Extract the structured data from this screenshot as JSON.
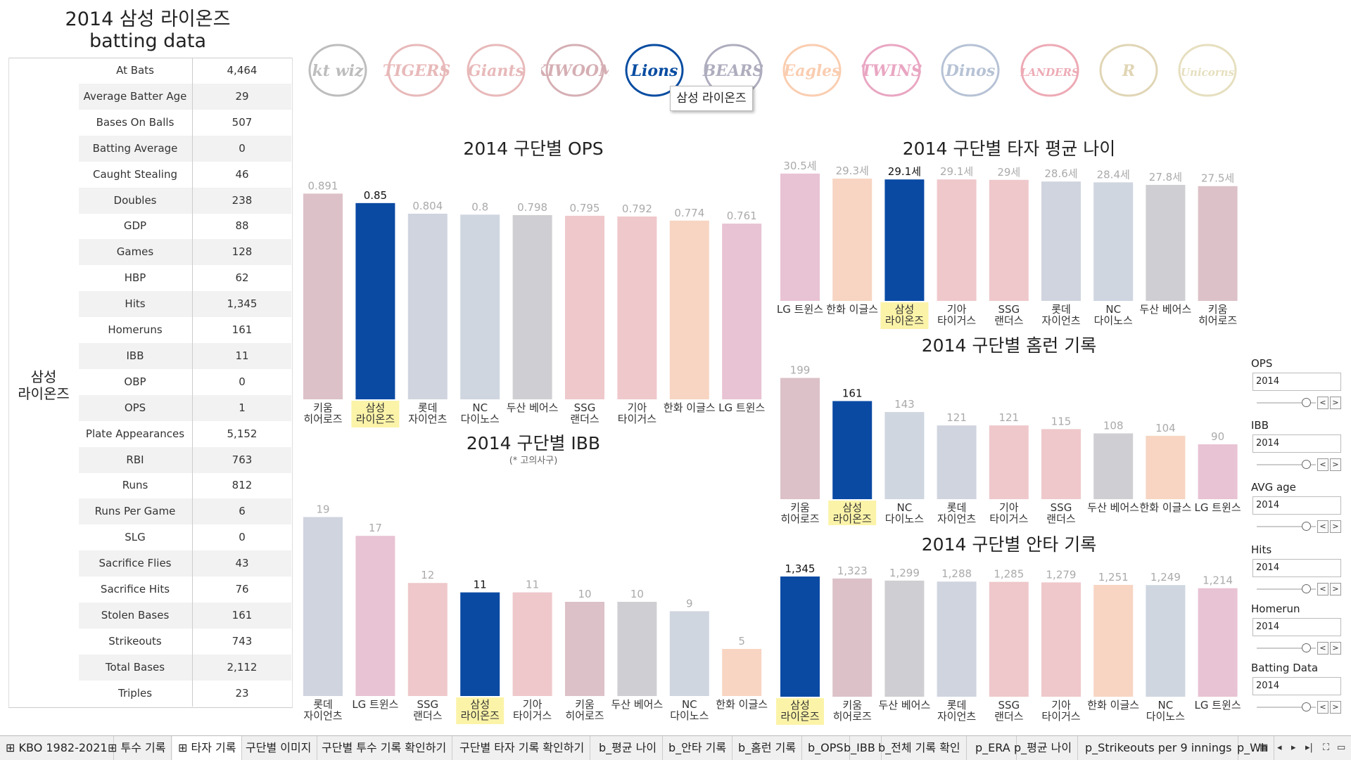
{
  "page_title": {
    "line1": "2014 삼성 라이온즈",
    "line2": "batting data"
  },
  "team": {
    "label_line1": "삼성",
    "label_line2": "라이온즈"
  },
  "stats": [
    {
      "name": "At Bats",
      "value": "4,464"
    },
    {
      "name": "Average Batter Age",
      "value": "29"
    },
    {
      "name": "Bases On Balls",
      "value": "507"
    },
    {
      "name": "Batting Average",
      "value": "0"
    },
    {
      "name": "Caught Stealing",
      "value": "46"
    },
    {
      "name": "Doubles",
      "value": "238"
    },
    {
      "name": "GDP",
      "value": "88"
    },
    {
      "name": "Games",
      "value": "128"
    },
    {
      "name": "HBP",
      "value": "62"
    },
    {
      "name": "Hits",
      "value": "1,345"
    },
    {
      "name": "Homeruns",
      "value": "161"
    },
    {
      "name": "IBB",
      "value": "11"
    },
    {
      "name": "OBP",
      "value": "0"
    },
    {
      "name": "OPS",
      "value": "1"
    },
    {
      "name": "Plate Appearances",
      "value": "5,152"
    },
    {
      "name": "RBI",
      "value": "763"
    },
    {
      "name": "Runs",
      "value": "812"
    },
    {
      "name": "Runs Per Game",
      "value": "6"
    },
    {
      "name": "SLG",
      "value": "0"
    },
    {
      "name": "Sacrifice Flies",
      "value": "43"
    },
    {
      "name": "Sacrifice Hits",
      "value": "76"
    },
    {
      "name": "Stolen Bases",
      "value": "161"
    },
    {
      "name": "Strikeouts",
      "value": "743"
    },
    {
      "name": "Total Bases",
      "value": "2,112"
    },
    {
      "name": "Triples",
      "value": "23"
    }
  ],
  "logos": [
    {
      "name": "kt-wiz-logo",
      "text": "kt wiz",
      "color": "#444444"
    },
    {
      "name": "tigers-logo",
      "text": "TIGERS",
      "color": "#c0393b"
    },
    {
      "name": "giants-logo",
      "text": "Giants",
      "color": "#c0393b"
    },
    {
      "name": "kiwoom-logo",
      "text": "KIWOOM",
      "color": "#8a1c2b"
    },
    {
      "name": "lions-logo",
      "text": "Lions",
      "color": "#074ca1"
    },
    {
      "name": "bears-logo",
      "text": "BEARS",
      "color": "#1a1748"
    },
    {
      "name": "eagles-logo",
      "text": "Eagles",
      "color": "#f37321"
    },
    {
      "name": "twins-logo",
      "text": "TWINS",
      "color": "#c30452"
    },
    {
      "name": "dinos-logo",
      "text": "Dinos",
      "color": "#315288"
    },
    {
      "name": "landers-logo",
      "text": "LANDERS",
      "color": "#ce0e2d"
    },
    {
      "name": "raiders-logo",
      "text": "R",
      "color": "#a88a2e"
    },
    {
      "name": "unicorns-logo",
      "text": "Unicorns",
      "color": "#b9a44a"
    }
  ],
  "tooltip": "삼성 라이온즈",
  "colors": {
    "highlight_bar": "#0a4aa3",
    "highlight_label_bg": "#fbf3a8",
    "faded_value": "#aaaaaa",
    "team_colors": {
      "키움 히어로즈": "#dcc1c8",
      "삼성 라이온즈": "#0a4aa3",
      "롯데 자이언츠": "#cfd4df",
      "NC 다이노스": "#cfd6e0",
      "두산 베어스": "#cfcfd3",
      "SSG 랜더스": "#efc8cb",
      "기아 타이거스": "#efc8cb",
      "한화 이글스": "#f7d5c2",
      "LG 트윈스": "#e8c3d3"
    }
  },
  "chart_data": [
    {
      "id": "ops",
      "type": "bar",
      "title": "2014 구단별 OPS",
      "categories": [
        "키움 히어로즈",
        "삼성 라이온즈",
        "롯데 자이언츠",
        "NC 다이노스",
        "두산 베어스",
        "SSG 랜더스",
        "기아 타이거스",
        "한화 이글스",
        "LG 트윈스"
      ],
      "values": [
        0.891,
        0.85,
        0.804,
        0.8,
        0.798,
        0.795,
        0.792,
        0.774,
        0.761
      ],
      "labels": [
        "0.891",
        "0.85",
        "0.804",
        "0.8",
        "0.798",
        "0.795",
        "0.792",
        "0.774",
        "0.761"
      ],
      "highlight": "삼성 라이온즈",
      "ylim": [
        0,
        0.95
      ]
    },
    {
      "id": "ibb",
      "type": "bar",
      "title": "2014 구단별 IBB",
      "subtitle": "(* 고의사구)",
      "categories": [
        "롯데 자이언츠",
        "LG 트윈스",
        "SSG 랜더스",
        "삼성 라이온즈",
        "기아 타이거스",
        "키움 히어로즈",
        "두산 베어스",
        "NC 다이노스",
        "한화 이글스"
      ],
      "values": [
        19,
        17,
        12,
        11,
        11,
        10,
        10,
        9,
        5
      ],
      "labels": [
        "19",
        "17",
        "12",
        "11",
        "11",
        "10",
        "10",
        "9",
        "5"
      ],
      "highlight": "삼성 라이온즈",
      "ylim": [
        0,
        20
      ]
    },
    {
      "id": "age",
      "type": "bar",
      "title": "2014 구단별 타자 평균 나이",
      "categories": [
        "LG 트윈스",
        "한화 이글스",
        "삼성 라이온즈",
        "기아 타이거스",
        "SSG 랜더스",
        "롯데 자이언츠",
        "NC 다이노스",
        "두산 베어스",
        "키움 히어로즈"
      ],
      "values": [
        30.5,
        29.3,
        29.1,
        29.1,
        29.0,
        28.6,
        28.4,
        27.8,
        27.5
      ],
      "labels": [
        "30.5세",
        "29.3세",
        "29.1세",
        "29.1세",
        "29세",
        "28.6세",
        "28.4세",
        "27.8세",
        "27.5세"
      ],
      "highlight": "삼성 라이온즈",
      "ylim": [
        0,
        32
      ]
    },
    {
      "id": "hr",
      "type": "bar",
      "title": "2014 구단별 홈런 기록",
      "categories": [
        "키움 히어로즈",
        "삼성 라이온즈",
        "NC 다이노스",
        "롯데 자이언츠",
        "기아 타이거스",
        "SSG 랜더스",
        "두산 베어스",
        "한화 이글스",
        "LG 트윈스"
      ],
      "values": [
        199,
        161,
        143,
        121,
        121,
        115,
        108,
        104,
        90
      ],
      "labels": [
        "199",
        "161",
        "143",
        "121",
        "121",
        "115",
        "108",
        "104",
        "90"
      ],
      "highlight": "삼성 라이온즈",
      "ylim": [
        0,
        210
      ]
    },
    {
      "id": "hits",
      "type": "bar",
      "title": "2014 구단별 안타 기록",
      "categories": [
        "삼성 라이온즈",
        "키움 히어로즈",
        "두산 베어스",
        "롯데 자이언츠",
        "SSG 랜더스",
        "기아 타이거스",
        "한화 이글스",
        "NC 다이노스",
        "LG 트윈스"
      ],
      "values": [
        1345,
        1323,
        1299,
        1288,
        1285,
        1279,
        1251,
        1249,
        1214
      ],
      "labels": [
        "1,345",
        "1,323",
        "1,299",
        "1,288",
        "1,285",
        "1,279",
        "1,251",
        "1,249",
        "1,214"
      ],
      "highlight": "삼성 라이온즈",
      "ylim": [
        0,
        1400
      ]
    }
  ],
  "filters": [
    {
      "label": "OPS",
      "value": "2014"
    },
    {
      "label": "IBB",
      "value": "2014"
    },
    {
      "label": "AVG age",
      "value": "2014"
    },
    {
      "label": "Hits",
      "value": "2014"
    },
    {
      "label": "Homerun",
      "value": "2014"
    },
    {
      "label": "Batting Data",
      "value": "2014"
    }
  ],
  "tabs": [
    "KBO 1982-2021",
    "투수 기록",
    "타자 기록",
    "구단별 이미지",
    "구단별 투수 기록 확인하기",
    "구단별 타자 기록 확인하기",
    "b_평균 나이",
    "b_안타 기록",
    "b_홈런 기록",
    "b_OPS",
    "b_IBB",
    "b_전체 기록 확인",
    "p_ERA",
    "p_평균 나이",
    "p_Strikeouts per 9 innings",
    "p_Wh"
  ]
}
